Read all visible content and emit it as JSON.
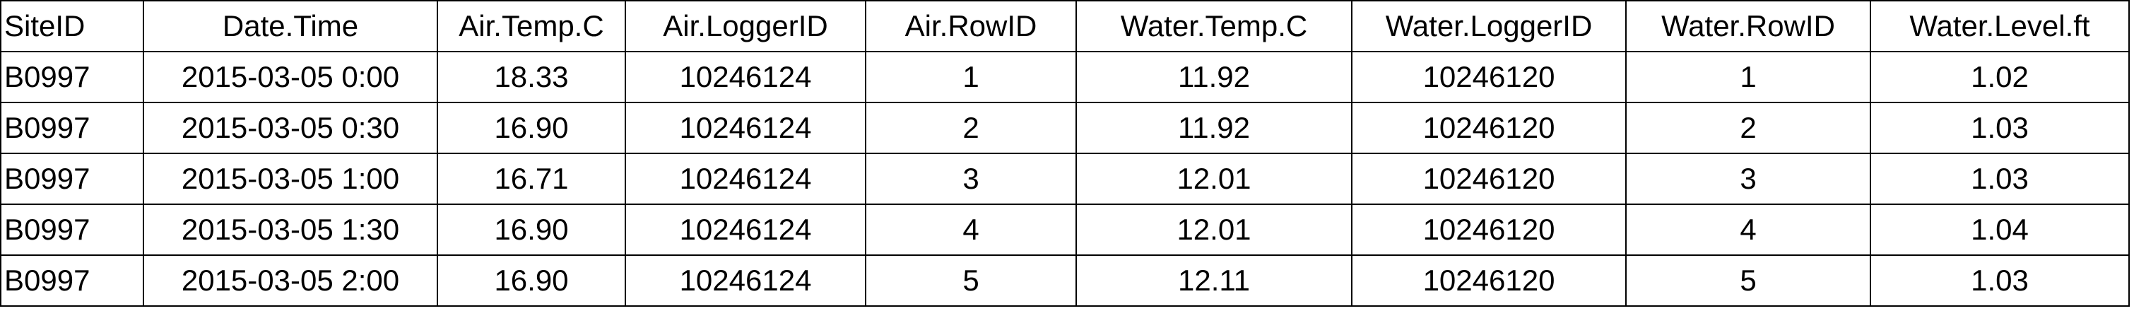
{
  "table": {
    "headers": [
      "SiteID",
      "Date.Time",
      "Air.Temp.C",
      "Air.LoggerID",
      "Air.RowID",
      "Water.Temp.C",
      "Water.LoggerID",
      "Water.RowID",
      "Water.Level.ft"
    ],
    "rows": [
      [
        "B0997",
        "2015-03-05 0:00",
        "18.33",
        "10246124",
        "1",
        "11.92",
        "10246120",
        "1",
        "1.02"
      ],
      [
        "B0997",
        "2015-03-05 0:30",
        "16.90",
        "10246124",
        "2",
        "11.92",
        "10246120",
        "2",
        "1.03"
      ],
      [
        "B0997",
        "2015-03-05 1:00",
        "16.71",
        "10246124",
        "3",
        "12.01",
        "10246120",
        "3",
        "1.03"
      ],
      [
        "B0997",
        "2015-03-05 1:30",
        "16.90",
        "10246124",
        "4",
        "12.01",
        "10246120",
        "4",
        "1.04"
      ],
      [
        "B0997",
        "2015-03-05 2:00",
        "16.90",
        "10246124",
        "5",
        "12.11",
        "10246120",
        "5",
        "1.03"
      ]
    ]
  }
}
